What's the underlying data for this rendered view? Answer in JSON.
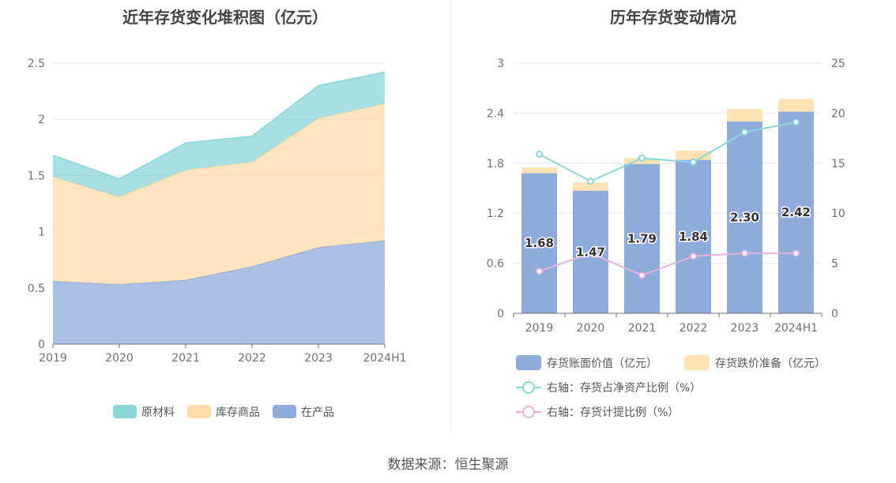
{
  "page": {
    "source": "数据来源：恒生聚源"
  },
  "chart_data": [
    {
      "type": "area",
      "stacked": true,
      "title": "近年存货变化堆积图（亿元）",
      "categories": [
        "2019",
        "2020",
        "2021",
        "2022",
        "2023",
        "2024H1"
      ],
      "ylim": [
        0,
        2.5
      ],
      "yticks": [
        "0",
        "0.5",
        "1",
        "1.5",
        "2",
        "2.5"
      ],
      "grid": true,
      "legend_position": "bottom",
      "series": [
        {
          "name": "在产品",
          "values": [
            0.56,
            0.53,
            0.57,
            0.69,
            0.86,
            0.92
          ],
          "color": "#8fabdc"
        },
        {
          "name": "库存商品",
          "values": [
            0.93,
            0.78,
            0.98,
            0.93,
            1.15,
            1.22
          ],
          "color": "#fddcaa"
        },
        {
          "name": "原材料",
          "values": [
            0.19,
            0.16,
            0.24,
            0.23,
            0.29,
            0.28
          ],
          "color": "#8ad6d8"
        }
      ],
      "legend": [
        "原材料",
        "库存商品",
        "在产品"
      ]
    },
    {
      "type": "bar",
      "title": "历年存货变动情况",
      "categories": [
        "2019",
        "2020",
        "2021",
        "2022",
        "2023",
        "2024H1"
      ],
      "ylim": [
        0,
        3
      ],
      "yticks": [
        "0",
        "0.6",
        "1.2",
        "1.8",
        "2.4",
        "3"
      ],
      "y2lim": [
        0,
        25
      ],
      "y2ticks": [
        "0",
        "5",
        "10",
        "15",
        "20",
        "25"
      ],
      "grid": true,
      "legend_position": "bottom",
      "series": [
        {
          "name": "存货账面价值（亿元）",
          "values": [
            1.68,
            1.47,
            1.79,
            1.84,
            2.3,
            2.42
          ],
          "labels": [
            "1.68",
            "1.47",
            "1.79",
            "1.84",
            "2.30",
            "2.42"
          ],
          "color": "#8fabdc",
          "axis": "left"
        },
        {
          "name": "存货跌价准备（亿元）",
          "values": [
            0.07,
            0.1,
            0.07,
            0.11,
            0.15,
            0.15
          ],
          "color": "#fde2b4",
          "axis": "left"
        },
        {
          "name": "右轴：存货占净资产比例（%）",
          "values": [
            15.9,
            13.2,
            15.5,
            15.1,
            18.1,
            19.1
          ],
          "color": "#8ad6d8",
          "axis": "right"
        },
        {
          "name": "右轴：存货计提比例（%）",
          "values": [
            4.2,
            6.0,
            3.8,
            5.7,
            6.0,
            6.0
          ],
          "color": "#e5b2da",
          "axis": "right"
        }
      ]
    }
  ]
}
